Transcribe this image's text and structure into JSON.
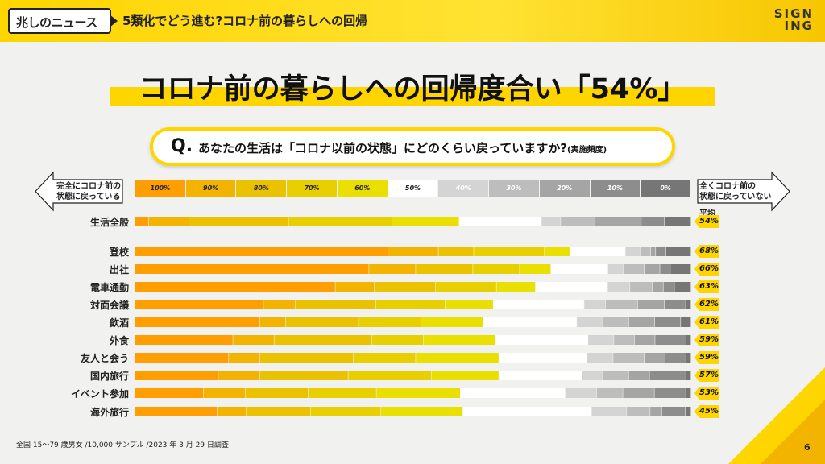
{
  "header": {
    "logo_text": "兆しのニュース",
    "title": "5類化でどう進む?コロナ前の暮らしへの回帰",
    "brand_line1": "SIGN",
    "brand_line2": "ING"
  },
  "main_title": "コロナ前の暮らしへの回帰度合い「54%」",
  "question": {
    "mark": "Q.",
    "text": "あなたの生活は「コロナ以前の状態」にどのくらい戻っていますか?",
    "note": "(実施頻度)"
  },
  "left_label_1": "完全にコロナ前の",
  "left_label_2": "状態に戻っている",
  "right_label_1": "全くコロナ前の",
  "right_label_2": "状態に戻っていない",
  "avg_header_1": "平均",
  "footnote": "全国 15〜79 歳男女 /10,000 サンプル /2023 年 3 月 29 日調査",
  "page_number": "6",
  "colors": {
    "scale": [
      "#ff9e00",
      "#f2b400",
      "#ebc200",
      "#e8d000",
      "#e9df00",
      "#ffffff",
      "#d4d4d4",
      "#bdbdbd",
      "#a5a5a5",
      "#8d8d8d",
      "#767676"
    ],
    "accent": "#ffd500"
  },
  "chart_data": {
    "type": "bar",
    "stacked": true,
    "scale_labels": [
      "100%",
      "90%",
      "80%",
      "70%",
      "60%",
      "50%",
      "40%",
      "30%",
      "20%",
      "10%",
      "0%"
    ],
    "rows": [
      {
        "label": "生活全般",
        "avg": "54%",
        "values": [
          3.5,
          10.5,
          26,
          27,
          17.5,
          21.5,
          5,
          9,
          12,
          6,
          7
        ]
      },
      {
        "label": "登校",
        "avg": "68%",
        "values": [
          50,
          10,
          7,
          14,
          5,
          11,
          3,
          2,
          1,
          2,
          5
        ]
      },
      {
        "label": "出社",
        "avg": "66%",
        "values": [
          45,
          9,
          11,
          9,
          6,
          11,
          3,
          4,
          3,
          2,
          4
        ]
      },
      {
        "label": "電車通勤",
        "avg": "63%",
        "values": [
          36,
          7,
          11,
          11,
          7,
          13,
          4,
          4,
          2,
          2,
          3
        ]
      },
      {
        "label": "対面会議",
        "avg": "62%",
        "values": [
          24,
          6,
          15,
          13,
          9,
          17,
          4,
          6,
          5,
          4,
          1
        ]
      },
      {
        "label": "飲酒",
        "avg": "61%",
        "values": [
          24,
          5,
          14,
          12,
          12,
          18,
          5,
          5,
          5,
          5,
          2
        ]
      },
      {
        "label": "外食",
        "avg": "59%",
        "values": [
          19,
          8,
          19,
          10,
          14,
          18,
          5,
          4,
          4,
          6,
          1
        ]
      },
      {
        "label": "友人と会う",
        "avg": "59%",
        "values": [
          18,
          6,
          18,
          12,
          16,
          17,
          5,
          6,
          4,
          4,
          1
        ]
      },
      {
        "label": "国内旅行",
        "avg": "57%",
        "values": [
          16,
          8,
          17,
          16,
          13,
          16,
          4,
          5,
          4,
          7,
          1
        ]
      },
      {
        "label": "イベント参加",
        "avg": "53%",
        "values": [
          13,
          8,
          12,
          13,
          16,
          20,
          6,
          5,
          6,
          6,
          1
        ]
      },
      {
        "label": "海外旅行",
        "avg": "45%",
        "values": [
          14,
          5,
          11,
          12,
          14,
          22,
          6,
          4,
          2,
          4,
          1
        ]
      }
    ]
  }
}
